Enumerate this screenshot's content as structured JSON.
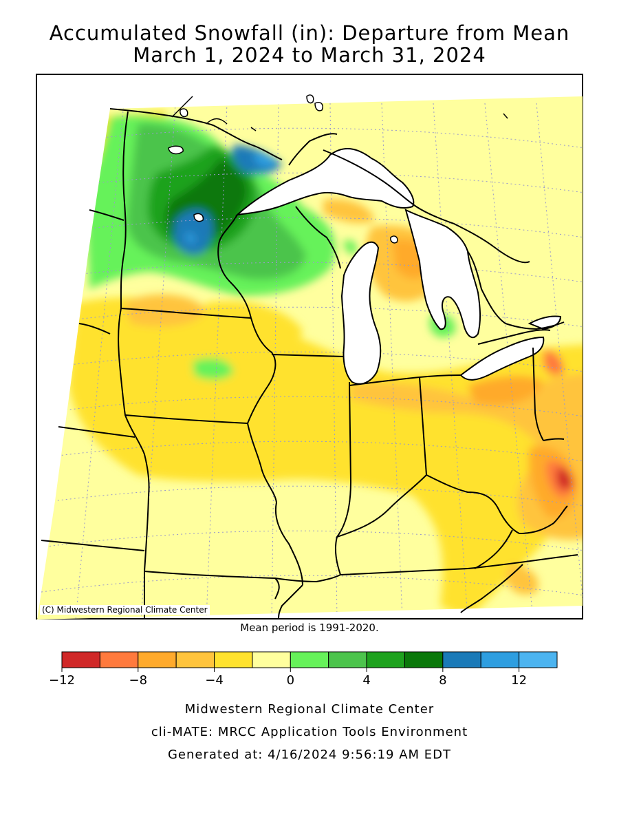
{
  "title": {
    "line1": "Accumulated Snowfall (in): Departure from Mean",
    "line2": "March 1, 2024 to March 31, 2024"
  },
  "map": {
    "credit": "(C) Midwestern Regional Climate Center",
    "mean_note": "Mean period is 1991-2020."
  },
  "legend": {
    "colors": [
      "#d02828",
      "#ff7a3d",
      "#ffaa2c",
      "#ffc43d",
      "#ffe22e",
      "#ffff9e",
      "#66f25a",
      "#4cc44c",
      "#1ea21e",
      "#0a780a",
      "#1a7ab8",
      "#2e9ee0",
      "#4cb4f0"
    ],
    "tick_labels": [
      "-12",
      "-8",
      "-4",
      "0",
      "4",
      "8",
      "12"
    ]
  },
  "footer": {
    "line1": "Midwestern Regional Climate Center",
    "line2": "cli-MATE: MRCC Application Tools Environment",
    "line3": "Generated at: 4/16/2024 9:56:19 AM EDT"
  }
}
